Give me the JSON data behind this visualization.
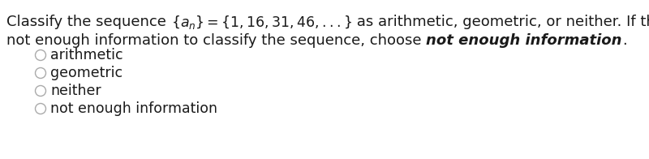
{
  "background_color": "#ffffff",
  "text_color": "#1a1a1a",
  "font_size": 13.0,
  "option_font_size": 12.5,
  "circle_color": "#aaaaaa",
  "options": [
    "arithmetic",
    "geometric",
    "neither",
    "not enough information"
  ],
  "line1_part1": "Classify the sequence ",
  "line1_math": "{aₙ} ={1,16, 31, 46,...}",
  "line1_part2": " as arithmetic, geometric, or neither. If there is",
  "line2_part1": "not enough information to classify the sequence, choose ",
  "line2_italic": "not enough information",
  "line2_end": "."
}
